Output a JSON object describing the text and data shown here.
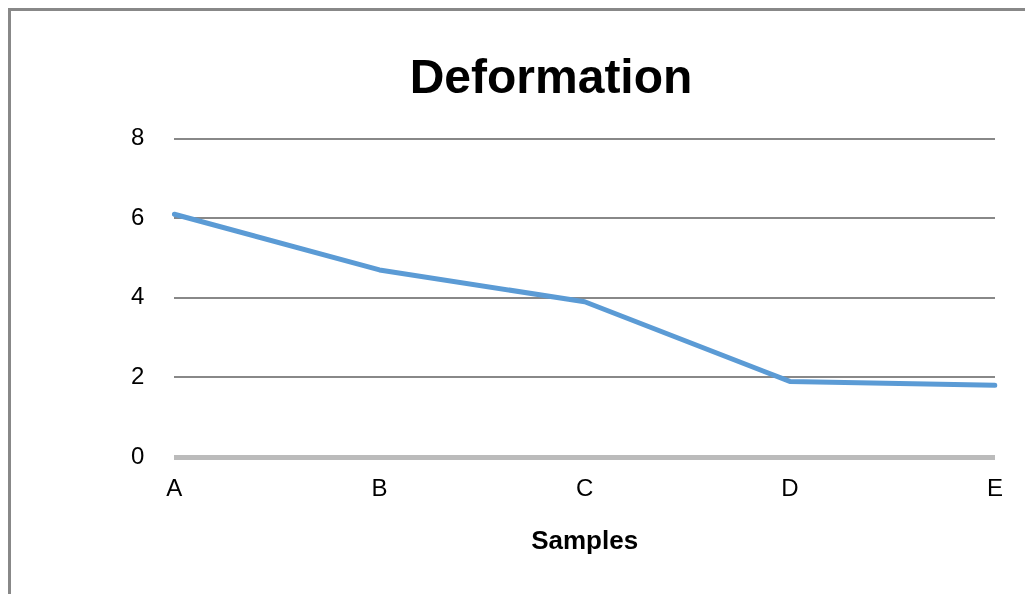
{
  "chart_data": {
    "type": "line",
    "title": "Deformation",
    "xlabel": "Samples",
    "categories": [
      "A",
      "B",
      "C",
      "D",
      "E"
    ],
    "series": [
      {
        "color": "#5b9bd5",
        "values": [
          6.1,
          4.7,
          3.9,
          1.9,
          1.8
        ]
      }
    ],
    "ylim": [
      0,
      8
    ],
    "yticks": [
      0,
      2,
      4,
      6,
      8
    ],
    "grid": "y",
    "legend": false,
    "marker": "none",
    "line_style": "solid"
  }
}
